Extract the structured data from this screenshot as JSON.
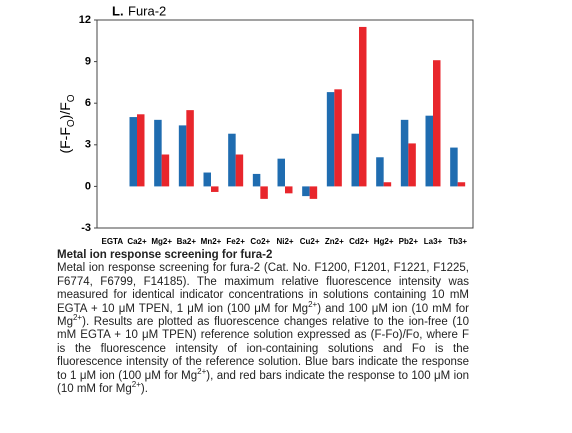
{
  "chart_data": {
    "type": "bar",
    "panel_label": "L.",
    "title": "Fura-2",
    "ylabel_parts": [
      "(F-F",
      "O",
      ")/F",
      "O"
    ],
    "categories": [
      "EGTA",
      "Ca2+",
      "Mg2+",
      "Ba2+",
      "Mn2+",
      "Fe2+",
      "Co2+",
      "Ni2+",
      "Cu2+",
      "Zn2+",
      "Cd2+",
      "Hg2+",
      "Pb2+",
      "La3+",
      "Tb3+"
    ],
    "series": [
      {
        "color": "#1f6cb0",
        "values": [
          null,
          5.0,
          4.8,
          4.4,
          1.0,
          3.8,
          0.9,
          2.0,
          -0.7,
          6.8,
          3.8,
          2.1,
          4.8,
          5.1,
          2.8
        ]
      },
      {
        "color": "#e8262c",
        "values": [
          null,
          5.2,
          2.3,
          5.5,
          -0.4,
          2.3,
          -0.9,
          -0.5,
          -0.9,
          7.0,
          11.5,
          0.3,
          3.1,
          9.1,
          0.3
        ]
      }
    ],
    "ylim": [
      -3,
      12
    ],
    "yticks": [
      -3,
      0,
      3,
      6,
      9,
      12
    ],
    "grid": false
  },
  "caption": {
    "title": "Metal ion response screening for fura-2",
    "body": [
      "Metal ion response screening for fura-2 (Cat. No. F1200, F1201, F1221, F1225, F6774, F6799, F14185). The maximum relative fluorescence intensity was measured for identical indicator concentrations in solutions containing 10 mM EGTA + 10 μM TPEN, 1 μM ion (100 μM for Mg",
      {
        "text": "2+",
        "sup": true
      },
      ") and 100 μM ion (10 mM for Mg",
      {
        "text": "2+",
        "sup": true
      },
      "). Results are plotted as fluorescence changes relative to the ion-free (10 mM EGTA + 10 μM TPEN) reference solution expressed as (F-Fo)/Fo, where F is the fluorescence intensity of ion-containing solutions and Fo is the fluorescence intensity of the reference solution. Blue bars indicate the response to 1 μM ion (100 μM for Mg",
      {
        "text": "2+",
        "sup": true
      },
      "), and red bars indicate the response to 100 μM ion (10 mM for Mg",
      {
        "text": "2+",
        "sup": true
      },
      ")."
    ]
  }
}
